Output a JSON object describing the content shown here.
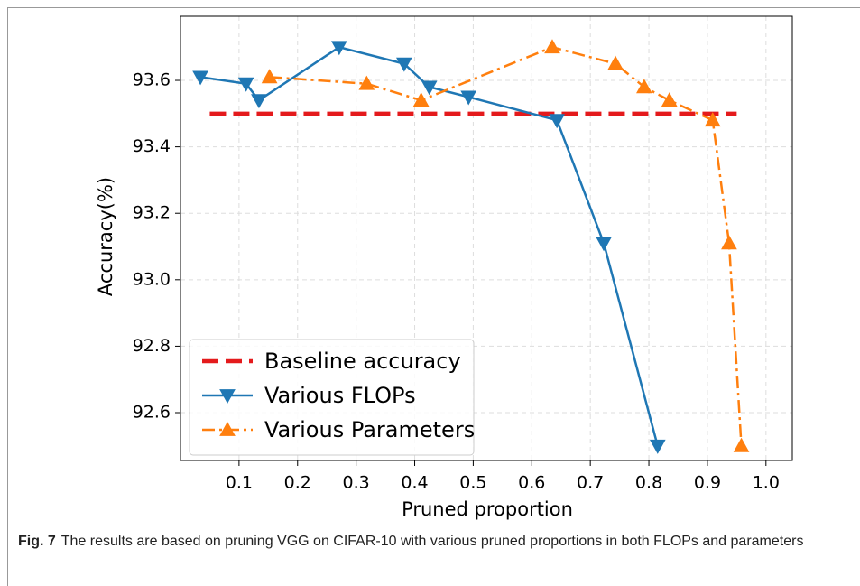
{
  "chart_data": {
    "type": "line",
    "xlabel": "Pruned proportion",
    "ylabel": "Accuracy(%)",
    "xlim": [
      0.0,
      1.045
    ],
    "ylim": [
      92.456,
      93.793
    ],
    "xticks": [
      0.1,
      0.2,
      0.3,
      0.4,
      0.5,
      0.6,
      0.7,
      0.8,
      0.9,
      {
        "value": 1.0,
        "label": "1.0"
      }
    ],
    "yticks": [
      92.6,
      92.8,
      {
        "value": 93.0,
        "label": "93.0"
      },
      93.2,
      93.4,
      93.6
    ],
    "grid": true,
    "legend": "lower left",
    "series": [
      {
        "name": "Baseline accuracy",
        "color": "#e41a1c",
        "style": "dashed",
        "marker": "none",
        "x": [
          0.05,
          0.95
        ],
        "values": [
          93.5,
          93.5
        ]
      },
      {
        "name": "Various FLOPs",
        "color": "#1f77b4",
        "style": "solid",
        "marker": "triangle-down",
        "x": [
          0.034,
          0.112,
          0.134,
          0.271,
          0.382,
          0.425,
          0.492,
          0.643,
          0.723,
          0.815
        ],
        "values": [
          93.61,
          93.59,
          93.54,
          93.7,
          93.65,
          93.58,
          93.55,
          93.48,
          93.11,
          92.5
        ]
      },
      {
        "name": "Various Parameters",
        "color": "#ff7f0e",
        "style": "dashdot",
        "marker": "triangle-up",
        "x": [
          0.152,
          0.318,
          0.411,
          0.635,
          0.743,
          0.792,
          0.835,
          0.909,
          0.937,
          0.958
        ],
        "values": [
          93.61,
          93.59,
          93.54,
          93.7,
          93.65,
          93.58,
          93.54,
          93.48,
          93.11,
          92.5
        ]
      }
    ]
  },
  "caption": {
    "label": "Fig. 7",
    "text": "The results are based on pruning VGG on CIFAR-10 with various pruned proportions in both FLOPs and parameters"
  }
}
